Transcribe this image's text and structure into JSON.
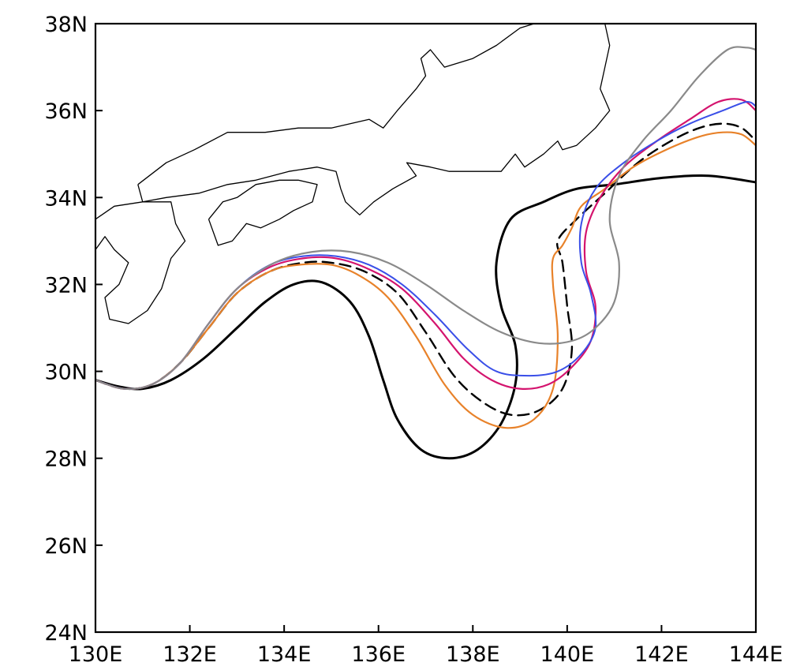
{
  "map": {
    "lon_range": [
      130,
      144
    ],
    "lat_range": [
      24,
      38
    ],
    "lon_ticks": [
      {
        "value": 130,
        "label": "130E"
      },
      {
        "value": 132,
        "label": "132E"
      },
      {
        "value": 134,
        "label": "134E"
      },
      {
        "value": 136,
        "label": "136E"
      },
      {
        "value": 138,
        "label": "138E"
      },
      {
        "value": 140,
        "label": "140E"
      },
      {
        "value": 142,
        "label": "142E"
      },
      {
        "value": 144,
        "label": "144E"
      }
    ],
    "lat_ticks": [
      {
        "value": 24,
        "label": "24N"
      },
      {
        "value": 26,
        "label": "26N"
      },
      {
        "value": 28,
        "label": "28N"
      },
      {
        "value": 30,
        "label": "30N"
      },
      {
        "value": 32,
        "label": "32N"
      },
      {
        "value": 34,
        "label": "34N"
      },
      {
        "value": 36,
        "label": "36N"
      },
      {
        "value": 38,
        "label": "38N"
      }
    ],
    "grid": false,
    "coastlines": [
      {
        "name": "honshu-coast",
        "points": [
          [
            130,
            33.5
          ],
          [
            130.4,
            33.8
          ],
          [
            131,
            33.9
          ],
          [
            131.5,
            34.0
          ],
          [
            132.2,
            34.1
          ],
          [
            132.8,
            34.3
          ],
          [
            133.4,
            34.4
          ],
          [
            134.1,
            34.6
          ],
          [
            134.7,
            34.7
          ],
          [
            135.1,
            34.6
          ],
          [
            135.2,
            34.2
          ],
          [
            135.3,
            33.9
          ],
          [
            135.6,
            33.6
          ],
          [
            135.9,
            33.9
          ],
          [
            136.3,
            34.2
          ],
          [
            136.8,
            34.5
          ],
          [
            136.6,
            34.8
          ],
          [
            137.1,
            34.7
          ],
          [
            137.5,
            34.6
          ],
          [
            138.0,
            34.6
          ],
          [
            138.6,
            34.6
          ],
          [
            138.9,
            35.0
          ],
          [
            139.1,
            34.7
          ],
          [
            139.5,
            35.0
          ],
          [
            139.8,
            35.3
          ],
          [
            139.9,
            35.1
          ],
          [
            140.2,
            35.2
          ],
          [
            140.6,
            35.6
          ],
          [
            140.9,
            36.0
          ],
          [
            140.7,
            36.5
          ],
          [
            140.8,
            37.0
          ],
          [
            140.9,
            37.5
          ],
          [
            140.8,
            38.0
          ]
        ]
      },
      {
        "name": "honshu-japan-sea-coast",
        "points": [
          [
            130.9,
            34.3
          ],
          [
            131.5,
            34.8
          ],
          [
            132.1,
            35.1
          ],
          [
            132.8,
            35.5
          ],
          [
            133.6,
            35.5
          ],
          [
            134.3,
            35.6
          ],
          [
            135.0,
            35.6
          ],
          [
            135.8,
            35.8
          ],
          [
            136.1,
            35.6
          ],
          [
            136.4,
            36.0
          ],
          [
            136.8,
            36.5
          ],
          [
            137.0,
            36.8
          ],
          [
            136.9,
            37.2
          ],
          [
            137.1,
            37.4
          ],
          [
            137.4,
            37.0
          ],
          [
            138.0,
            37.2
          ],
          [
            138.5,
            37.5
          ],
          [
            139.0,
            37.9
          ],
          [
            139.3,
            38.0
          ]
        ]
      },
      {
        "name": "shikoku-coast",
        "points": [
          [
            132.4,
            33.5
          ],
          [
            132.7,
            33.9
          ],
          [
            133.0,
            34.0
          ],
          [
            133.4,
            34.3
          ],
          [
            133.9,
            34.4
          ],
          [
            134.3,
            34.4
          ],
          [
            134.7,
            34.3
          ],
          [
            134.6,
            33.9
          ],
          [
            134.2,
            33.7
          ],
          [
            133.9,
            33.5
          ],
          [
            133.5,
            33.3
          ],
          [
            133.2,
            33.4
          ],
          [
            132.9,
            33.0
          ],
          [
            132.6,
            32.9
          ],
          [
            132.4,
            33.5
          ]
        ]
      },
      {
        "name": "kyushu-coast",
        "points": [
          [
            130.9,
            34.3
          ],
          [
            131.0,
            33.9
          ],
          [
            131.6,
            33.9
          ],
          [
            131.7,
            33.4
          ],
          [
            131.9,
            33.0
          ],
          [
            131.6,
            32.6
          ],
          [
            131.4,
            31.9
          ],
          [
            131.1,
            31.4
          ],
          [
            130.7,
            31.1
          ],
          [
            130.3,
            31.2
          ],
          [
            130.2,
            31.7
          ],
          [
            130.5,
            32.0
          ],
          [
            130.7,
            32.5
          ],
          [
            130.4,
            32.8
          ],
          [
            130.2,
            33.1
          ],
          [
            130.0,
            32.8
          ]
        ]
      }
    ]
  },
  "chart_data": {
    "type": "line",
    "x_axis": "longitude",
    "y_axis": "latitude",
    "xlim": [
      130,
      144
    ],
    "ylim": [
      24,
      38
    ],
    "series": [
      {
        "color": "#000000",
        "style": "solid",
        "width": 3.0,
        "points": [
          [
            130,
            29.8
          ],
          [
            130.5,
            29.65
          ],
          [
            131,
            29.6
          ],
          [
            131.6,
            29.8
          ],
          [
            132.3,
            30.3
          ],
          [
            133,
            31.0
          ],
          [
            133.6,
            31.6
          ],
          [
            134.2,
            32.0
          ],
          [
            134.8,
            32.05
          ],
          [
            135.4,
            31.6
          ],
          [
            135.8,
            30.8
          ],
          [
            136.1,
            29.8
          ],
          [
            136.4,
            28.9
          ],
          [
            136.9,
            28.2
          ],
          [
            137.5,
            28.0
          ],
          [
            138.1,
            28.2
          ],
          [
            138.6,
            28.8
          ],
          [
            138.9,
            29.7
          ],
          [
            138.9,
            30.6
          ],
          [
            138.6,
            31.5
          ],
          [
            138.5,
            32.5
          ],
          [
            138.8,
            33.5
          ],
          [
            139.5,
            33.9
          ],
          [
            140.2,
            34.2
          ],
          [
            141,
            34.3
          ],
          [
            142,
            34.45
          ],
          [
            143,
            34.5
          ],
          [
            144,
            34.35
          ]
        ]
      },
      {
        "color": "#000000",
        "style": "dashed",
        "width": 2.4,
        "points": [
          [
            130,
            29.8
          ],
          [
            130.6,
            29.6
          ],
          [
            131.2,
            29.7
          ],
          [
            131.8,
            30.2
          ],
          [
            132.4,
            31.0
          ],
          [
            133,
            31.8
          ],
          [
            133.7,
            32.3
          ],
          [
            134.4,
            32.5
          ],
          [
            135,
            32.5
          ],
          [
            135.7,
            32.3
          ],
          [
            136.4,
            31.8
          ],
          [
            137,
            30.9
          ],
          [
            137.6,
            29.9
          ],
          [
            138.2,
            29.3
          ],
          [
            138.8,
            29.0
          ],
          [
            139.4,
            29.1
          ],
          [
            139.9,
            29.6
          ],
          [
            140.1,
            30.5
          ],
          [
            140.0,
            31.5
          ],
          [
            139.9,
            32.5
          ],
          [
            139.8,
            33.0
          ],
          [
            140.2,
            33.5
          ],
          [
            140.8,
            34.1
          ],
          [
            141.5,
            34.8
          ],
          [
            142.2,
            35.3
          ],
          [
            142.8,
            35.6
          ],
          [
            143.3,
            35.7
          ],
          [
            143.7,
            35.6
          ],
          [
            144,
            35.3
          ]
        ]
      },
      {
        "color": "#e8822a",
        "style": "solid",
        "width": 2.2,
        "points": [
          [
            130,
            29.8
          ],
          [
            130.6,
            29.6
          ],
          [
            131.2,
            29.7
          ],
          [
            131.8,
            30.2
          ],
          [
            132.4,
            31.0
          ],
          [
            133,
            31.8
          ],
          [
            133.7,
            32.3
          ],
          [
            134.3,
            32.45
          ],
          [
            135,
            32.45
          ],
          [
            135.6,
            32.2
          ],
          [
            136.2,
            31.7
          ],
          [
            136.8,
            30.8
          ],
          [
            137.4,
            29.7
          ],
          [
            138,
            29.0
          ],
          [
            138.7,
            28.7
          ],
          [
            139.3,
            28.9
          ],
          [
            139.7,
            29.6
          ],
          [
            139.8,
            30.8
          ],
          [
            139.7,
            32.0
          ],
          [
            139.7,
            32.6
          ],
          [
            139.9,
            32.9
          ],
          [
            140.1,
            33.3
          ],
          [
            140.3,
            33.8
          ],
          [
            140.8,
            34.2
          ],
          [
            141.4,
            34.7
          ],
          [
            142.1,
            35.1
          ],
          [
            142.8,
            35.4
          ],
          [
            143.3,
            35.5
          ],
          [
            143.7,
            35.45
          ],
          [
            144,
            35.2
          ]
        ]
      },
      {
        "color": "#d4146e",
        "style": "solid",
        "width": 2.2,
        "points": [
          [
            130,
            29.8
          ],
          [
            130.6,
            29.6
          ],
          [
            131.2,
            29.7
          ],
          [
            131.8,
            30.2
          ],
          [
            132.4,
            31.1
          ],
          [
            133,
            31.9
          ],
          [
            133.7,
            32.4
          ],
          [
            134.4,
            32.6
          ],
          [
            135.1,
            32.6
          ],
          [
            135.8,
            32.35
          ],
          [
            136.5,
            31.9
          ],
          [
            137.2,
            31.1
          ],
          [
            137.8,
            30.3
          ],
          [
            138.4,
            29.8
          ],
          [
            139,
            29.6
          ],
          [
            139.6,
            29.7
          ],
          [
            140.1,
            30.1
          ],
          [
            140.5,
            30.7
          ],
          [
            140.6,
            31.5
          ],
          [
            140.4,
            32.3
          ],
          [
            140.4,
            33.2
          ],
          [
            140.7,
            34.0
          ],
          [
            141.2,
            34.7
          ],
          [
            141.9,
            35.3
          ],
          [
            142.6,
            35.8
          ],
          [
            143.2,
            36.2
          ],
          [
            143.7,
            36.25
          ],
          [
            144,
            36.0
          ]
        ]
      },
      {
        "color": "#3a4fe8",
        "style": "solid",
        "width": 2.0,
        "points": [
          [
            130,
            29.8
          ],
          [
            130.6,
            29.6
          ],
          [
            131.2,
            29.7
          ],
          [
            131.8,
            30.2
          ],
          [
            132.4,
            31.1
          ],
          [
            133,
            31.9
          ],
          [
            133.7,
            32.45
          ],
          [
            134.4,
            32.65
          ],
          [
            135.1,
            32.65
          ],
          [
            135.8,
            32.45
          ],
          [
            136.5,
            32.0
          ],
          [
            137.2,
            31.3
          ],
          [
            137.9,
            30.5
          ],
          [
            138.5,
            30.0
          ],
          [
            139.2,
            29.9
          ],
          [
            139.8,
            30.0
          ],
          [
            140.3,
            30.4
          ],
          [
            140.6,
            31.0
          ],
          [
            140.5,
            31.8
          ],
          [
            140.3,
            32.5
          ],
          [
            140.3,
            33.4
          ],
          [
            140.6,
            34.2
          ],
          [
            141.2,
            34.8
          ],
          [
            141.9,
            35.3
          ],
          [
            142.6,
            35.7
          ],
          [
            143.3,
            36.0
          ],
          [
            143.8,
            36.2
          ],
          [
            144,
            36.1
          ]
        ]
      },
      {
        "color": "#8a8a8a",
        "style": "solid",
        "width": 2.2,
        "points": [
          [
            130,
            29.8
          ],
          [
            130.6,
            29.6
          ],
          [
            131.2,
            29.7
          ],
          [
            131.8,
            30.2
          ],
          [
            132.4,
            31.1
          ],
          [
            133,
            31.9
          ],
          [
            133.8,
            32.5
          ],
          [
            134.6,
            32.75
          ],
          [
            135.4,
            32.75
          ],
          [
            136.2,
            32.5
          ],
          [
            137,
            32.0
          ],
          [
            137.8,
            31.4
          ],
          [
            138.6,
            30.9
          ],
          [
            139.4,
            30.65
          ],
          [
            140.1,
            30.7
          ],
          [
            140.6,
            31.0
          ],
          [
            141.0,
            31.6
          ],
          [
            141.1,
            32.5
          ],
          [
            140.9,
            33.5
          ],
          [
            141.1,
            34.5
          ],
          [
            141.6,
            35.3
          ],
          [
            142.2,
            36.0
          ],
          [
            142.8,
            36.8
          ],
          [
            143.4,
            37.4
          ],
          [
            143.8,
            37.45
          ],
          [
            144,
            37.4
          ]
        ]
      }
    ]
  }
}
